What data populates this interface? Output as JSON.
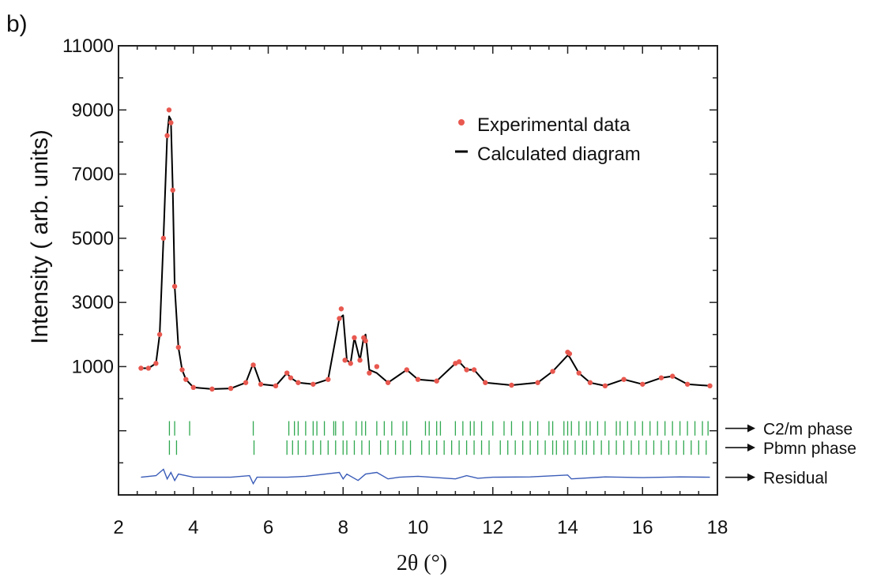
{
  "panel_label": "b)",
  "chart_data": {
    "type": "scatter",
    "xlabel": "2θ (°)",
    "ylabel": "Intensity  ( arb. units)",
    "xlim": [
      2,
      18
    ],
    "ylim": [
      -3000,
      11000
    ],
    "x_ticks": [
      2,
      4,
      6,
      8,
      10,
      12,
      14,
      16,
      18
    ],
    "y_ticks": [
      1000,
      3000,
      5000,
      7000,
      9000,
      11000
    ],
    "x_tick_labels": [
      "2",
      "4",
      "6",
      "8",
      "10",
      "12",
      "14",
      "16",
      "18"
    ],
    "y_tick_labels": [
      "1000",
      "3000",
      "5000",
      "7000",
      "9000",
      "11000"
    ],
    "grid": false,
    "legend_position": "top-right",
    "legend": [
      {
        "label": "Experimental data",
        "marker": "dot",
        "color": "#e8584f"
      },
      {
        "label": "Calculated diagram",
        "marker": "line",
        "color": "#000000"
      }
    ],
    "series": [
      {
        "name": "Experimental data",
        "kind": "points",
        "color": "#e8584f",
        "x": [
          2.6,
          2.8,
          3.0,
          3.1,
          3.2,
          3.3,
          3.35,
          3.4,
          3.45,
          3.5,
          3.6,
          3.7,
          3.8,
          4.0,
          4.5,
          5.0,
          5.4,
          5.6,
          5.8,
          6.2,
          6.5,
          6.6,
          6.8,
          7.2,
          7.6,
          7.9,
          7.95,
          8.05,
          8.2,
          8.3,
          8.45,
          8.55,
          8.6,
          8.7,
          8.9,
          9.2,
          9.7,
          10.0,
          10.5,
          11.0,
          11.1,
          11.3,
          11.5,
          11.8,
          12.5,
          13.2,
          13.6,
          14.0,
          14.05,
          14.3,
          14.6,
          15.0,
          15.5,
          16.0,
          16.5,
          16.8,
          17.2,
          17.8
        ],
        "y": [
          950,
          950,
          1100,
          2000,
          5000,
          8200,
          9000,
          8600,
          6500,
          3500,
          1600,
          900,
          600,
          350,
          300,
          320,
          500,
          1050,
          450,
          400,
          800,
          650,
          500,
          450,
          600,
          2500,
          2800,
          1200,
          1100,
          1900,
          1200,
          1900,
          1800,
          800,
          1000,
          500,
          900,
          600,
          550,
          1100,
          1150,
          900,
          900,
          500,
          420,
          500,
          850,
          1450,
          1400,
          800,
          500,
          400,
          600,
          450,
          650,
          700,
          450,
          400
        ]
      },
      {
        "name": "Calculated diagram",
        "kind": "line",
        "color": "#000000",
        "x": [
          2.6,
          2.8,
          3.0,
          3.1,
          3.2,
          3.3,
          3.35,
          3.4,
          3.45,
          3.5,
          3.6,
          3.7,
          3.8,
          4.0,
          4.5,
          5.0,
          5.4,
          5.6,
          5.8,
          6.2,
          6.5,
          6.6,
          6.8,
          7.2,
          7.6,
          7.9,
          8.0,
          8.1,
          8.2,
          8.3,
          8.45,
          8.55,
          8.6,
          8.7,
          8.9,
          9.2,
          9.7,
          10.0,
          10.5,
          11.0,
          11.1,
          11.3,
          11.5,
          11.8,
          12.5,
          13.2,
          13.6,
          14.0,
          14.05,
          14.3,
          14.6,
          15.0,
          15.5,
          16.0,
          16.5,
          16.8,
          17.2,
          17.8
        ],
        "y": [
          950,
          950,
          1100,
          2000,
          5000,
          8200,
          8800,
          8700,
          6500,
          3500,
          1600,
          900,
          600,
          350,
          300,
          320,
          500,
          1100,
          450,
          400,
          800,
          650,
          500,
          450,
          600,
          2500,
          2600,
          1200,
          1100,
          1900,
          1200,
          1900,
          2000,
          900,
          800,
          500,
          900,
          600,
          550,
          1100,
          1150,
          900,
          900,
          500,
          420,
          500,
          850,
          1350,
          1300,
          800,
          500,
          400,
          600,
          450,
          650,
          700,
          450,
          400
        ]
      },
      {
        "name": "Residual",
        "kind": "line",
        "color": "#3a5cb8",
        "baseline": -2450,
        "x": [
          2.6,
          3.0,
          3.2,
          3.3,
          3.4,
          3.5,
          3.6,
          4.0,
          5.0,
          5.5,
          5.6,
          5.7,
          6.5,
          7.0,
          7.9,
          8.0,
          8.1,
          8.4,
          8.6,
          8.9,
          9.2,
          9.5,
          10.0,
          11.0,
          11.3,
          11.6,
          12.0,
          13.0,
          14.0,
          14.1,
          15.0,
          16.0,
          17.0,
          17.8
        ],
        "y": [
          -2450,
          -2400,
          -2200,
          -2500,
          -2300,
          -2550,
          -2350,
          -2450,
          -2450,
          -2400,
          -2650,
          -2450,
          -2450,
          -2420,
          -2300,
          -2500,
          -2350,
          -2550,
          -2350,
          -2300,
          -2500,
          -2450,
          -2420,
          -2500,
          -2400,
          -2480,
          -2450,
          -2440,
          -2380,
          -2500,
          -2440,
          -2460,
          -2440,
          -2450
        ]
      }
    ],
    "phase_reflections": [
      {
        "name": "C2/m phase",
        "color": "#2fa84f",
        "y_range": [
          -700,
          -1150
        ],
        "positions": [
          3.36,
          3.5,
          3.9,
          5.6,
          6.55,
          6.7,
          6.8,
          7.0,
          7.2,
          7.3,
          7.5,
          7.75,
          7.8,
          8.0,
          8.35,
          8.5,
          8.6,
          8.9,
          9.1,
          9.3,
          9.6,
          9.7,
          10.2,
          10.3,
          10.5,
          10.6,
          11.0,
          11.2,
          11.4,
          11.5,
          11.7,
          12.0,
          12.3,
          12.5,
          12.8,
          13.0,
          13.2,
          13.5,
          13.6,
          13.9,
          14.0,
          14.1,
          14.3,
          14.5,
          14.6,
          14.8,
          15.0,
          15.3,
          15.4,
          15.6,
          15.8,
          16.0,
          16.2,
          16.4,
          16.6,
          16.8,
          17.0,
          17.2,
          17.4,
          17.6,
          17.75
        ]
      },
      {
        "name": "Pbmn phase",
        "color": "#2fa84f",
        "y_range": [
          -1300,
          -1750
        ],
        "positions": [
          3.36,
          3.55,
          5.62,
          6.5,
          6.65,
          6.8,
          7.0,
          7.2,
          7.4,
          7.6,
          7.8,
          8.0,
          8.1,
          8.3,
          8.5,
          8.7,
          9.0,
          9.2,
          9.4,
          9.6,
          9.8,
          10.1,
          10.3,
          10.5,
          10.7,
          10.9,
          11.1,
          11.3,
          11.5,
          11.7,
          11.9,
          12.2,
          12.4,
          12.6,
          12.8,
          13.0,
          13.2,
          13.4,
          13.6,
          13.7,
          13.9,
          14.0,
          14.2,
          14.4,
          14.5,
          14.7,
          14.9,
          15.1,
          15.3,
          15.5,
          15.7,
          15.9,
          16.1,
          16.3,
          16.5,
          16.7,
          16.9,
          17.1,
          17.3,
          17.5,
          17.7
        ]
      }
    ],
    "annotations": [
      {
        "label": "C2/m phase",
        "series": "C2/m phase",
        "value": -925
      },
      {
        "label": "Pbmn phase",
        "series": "Pbmn phase",
        "value": -1525
      },
      {
        "label": "Residual",
        "series": "Residual",
        "value": -2450
      }
    ]
  }
}
